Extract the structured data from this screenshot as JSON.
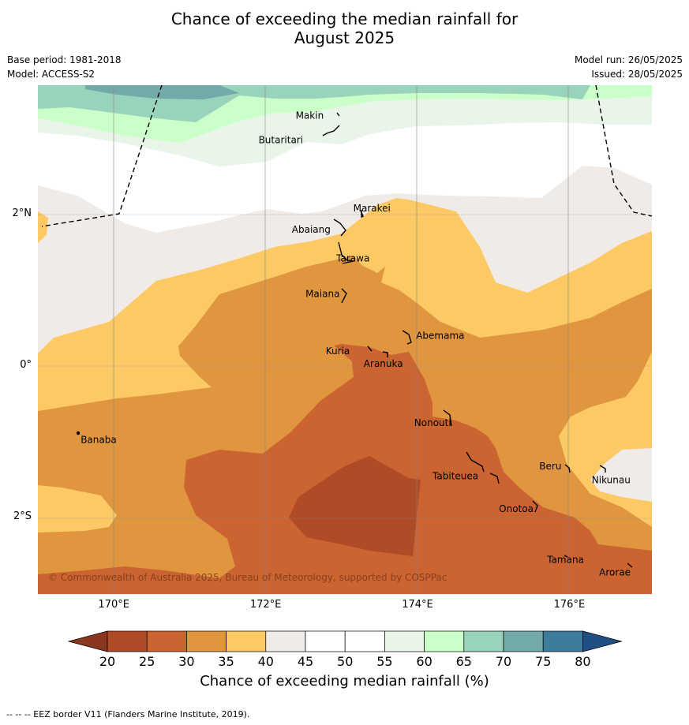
{
  "title_line1": "Chance of exceeding the median rainfall for",
  "title_line2": "August 2025",
  "meta_left": {
    "base_period": "Base period: 1981-2018",
    "model": "Model: ACCESS-S2"
  },
  "meta_right": {
    "model_run": "Model run: 26/05/2025",
    "issued": "Issued: 28/05/2025"
  },
  "map": {
    "lat_labels": [
      {
        "label": "2°N",
        "lat": 2
      },
      {
        "label": "0°",
        "lat": 0
      },
      {
        "label": "2°S",
        "lat": -2
      }
    ],
    "lon_labels": [
      {
        "label": "170°E",
        "lon": 170
      },
      {
        "label": "172°E",
        "lon": 172
      },
      {
        "label": "174°E",
        "lon": 174
      },
      {
        "label": "176°E",
        "lon": 176
      }
    ],
    "places": [
      {
        "name": "Makin",
        "lon": 172.58,
        "lat": 3.3
      },
      {
        "name": "Butaritari",
        "lon": 172.2,
        "lat": 2.98
      },
      {
        "name": "Marakei",
        "lon": 173.4,
        "lat": 2.08
      },
      {
        "name": "Abaiang",
        "lon": 172.6,
        "lat": 1.8
      },
      {
        "name": "Tarawa",
        "lon": 173.15,
        "lat": 1.42
      },
      {
        "name": "Maiana",
        "lon": 172.75,
        "lat": 0.95
      },
      {
        "name": "Abemama",
        "lon": 174.3,
        "lat": 0.4
      },
      {
        "name": "Kuria",
        "lon": 172.95,
        "lat": 0.2
      },
      {
        "name": "Aranuka",
        "lon": 173.55,
        "lat": 0.03
      },
      {
        "name": "Nonouti",
        "lon": 174.2,
        "lat": -0.75
      },
      {
        "name": "Banaba",
        "lon": 169.8,
        "lat": -0.97
      },
      {
        "name": "Beru",
        "lon": 175.75,
        "lat": -1.32
      },
      {
        "name": "Nikunau",
        "lon": 176.55,
        "lat": -1.5
      },
      {
        "name": "Tabiteuea",
        "lon": 174.5,
        "lat": -1.45
      },
      {
        "name": "Onotoa",
        "lon": 175.3,
        "lat": -1.88
      },
      {
        "name": "Tamana",
        "lon": 175.95,
        "lat": -2.55
      },
      {
        "name": "Arorae",
        "lon": 176.6,
        "lat": -2.72
      }
    ],
    "copyright": "© Commonwealth of Australia 2025, Bureau of Meteorology, supported by COSPPac"
  },
  "colorbar": {
    "ticks": [
      "20",
      "25",
      "30",
      "35",
      "40",
      "45",
      "50",
      "55",
      "60",
      "65",
      "70",
      "75",
      "80"
    ],
    "colors": [
      "#b04b27",
      "#cb6430",
      "#e0953f",
      "#fdc965",
      "#f0ebe6",
      "#ffffff",
      "#ffffff",
      "#eaf5ea",
      "#caffca",
      "#9ad3bc",
      "#73aaa9",
      "#3d7c9b"
    ],
    "low_color": "#8a3620",
    "high_color": "#1f4f84",
    "label": "Chance of exceeding median rainfall (%)"
  },
  "footnote": "--  --  -- EEZ border V11 (Flanders Marine Institute, 2019)."
}
